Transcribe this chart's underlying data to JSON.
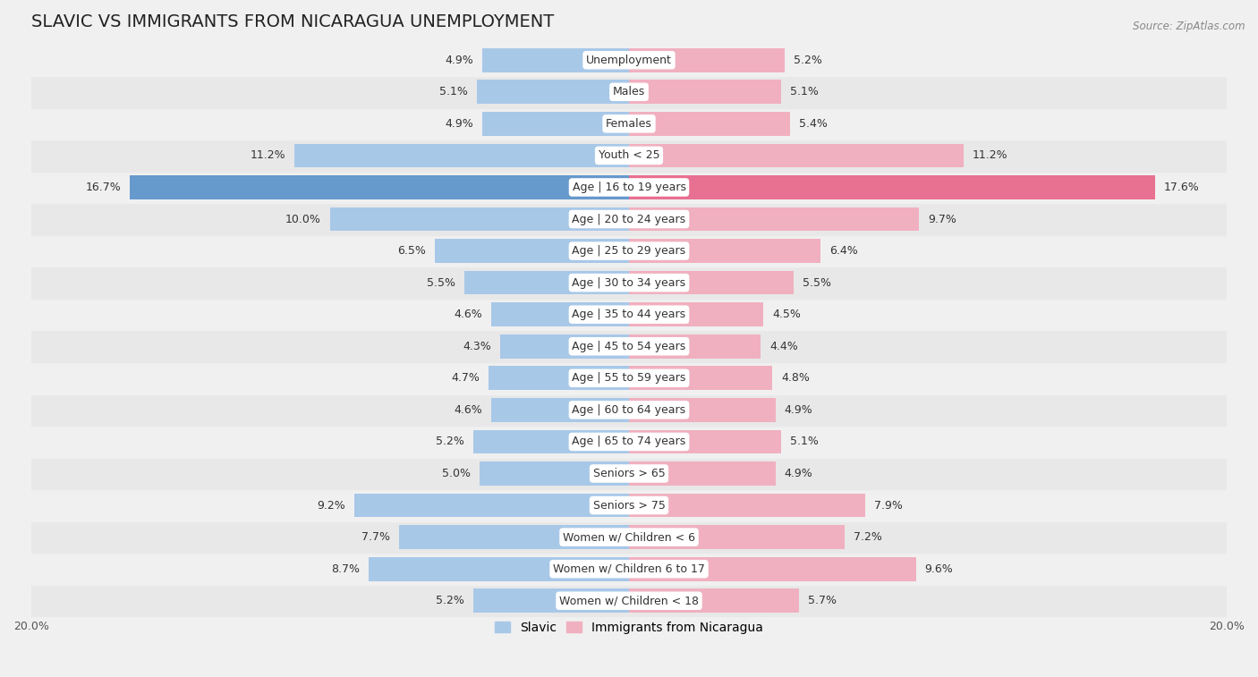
{
  "title": "SLAVIC VS IMMIGRANTS FROM NICARAGUA UNEMPLOYMENT",
  "source": "Source: ZipAtlas.com",
  "categories": [
    "Unemployment",
    "Males",
    "Females",
    "Youth < 25",
    "Age | 16 to 19 years",
    "Age | 20 to 24 years",
    "Age | 25 to 29 years",
    "Age | 30 to 34 years",
    "Age | 35 to 44 years",
    "Age | 45 to 54 years",
    "Age | 55 to 59 years",
    "Age | 60 to 64 years",
    "Age | 65 to 74 years",
    "Seniors > 65",
    "Seniors > 75",
    "Women w/ Children < 6",
    "Women w/ Children 6 to 17",
    "Women w/ Children < 18"
  ],
  "slavic": [
    4.9,
    5.1,
    4.9,
    11.2,
    16.7,
    10.0,
    6.5,
    5.5,
    4.6,
    4.3,
    4.7,
    4.6,
    5.2,
    5.0,
    9.2,
    7.7,
    8.7,
    5.2
  ],
  "nicaragua": [
    5.2,
    5.1,
    5.4,
    11.2,
    17.6,
    9.7,
    6.4,
    5.5,
    4.5,
    4.4,
    4.8,
    4.9,
    5.1,
    4.9,
    7.9,
    7.2,
    9.6,
    5.7
  ],
  "slavic_color": "#a8c8e8",
  "nicaragua_color": "#f0b0c0",
  "highlight_slavic_color": "#6699cc",
  "highlight_nicaragua_color": "#e87090",
  "bar_height": 0.75,
  "max_val": 20.0,
  "bg_color": "#f0f0f0",
  "row_colors": [
    "#e8e8e8",
    "#f0f0f0"
  ],
  "title_fontsize": 14,
  "label_fontsize": 9,
  "value_fontsize": 9,
  "legend_fontsize": 10
}
